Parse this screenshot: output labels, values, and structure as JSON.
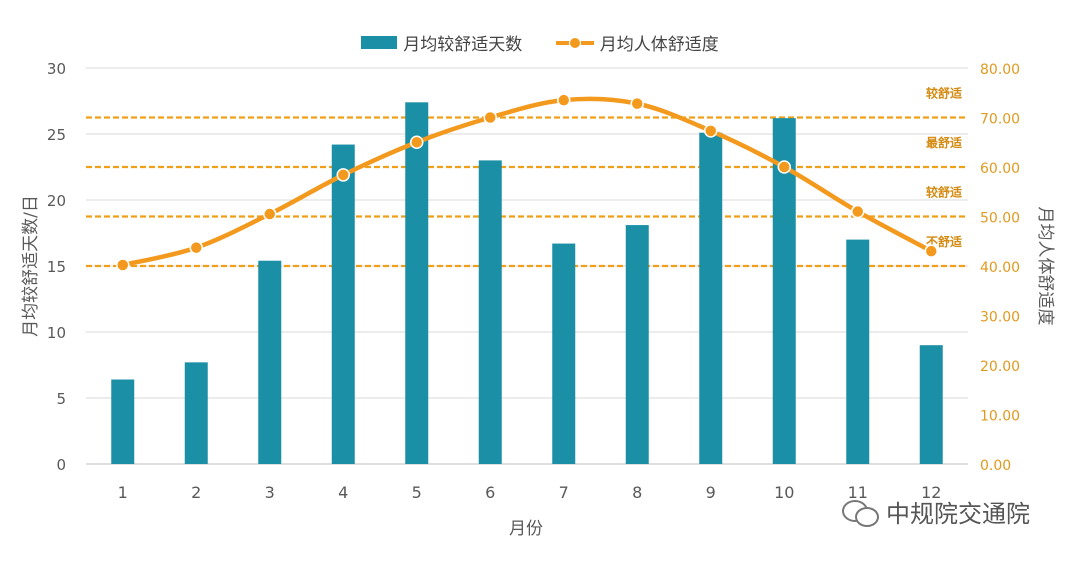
{
  "legend": {
    "bar_label": "月均较舒适天数",
    "line_label": "月均人体舒适度"
  },
  "watermark": {
    "text": "中规院交通院"
  },
  "colors": {
    "bar": "#1A8FA5",
    "line": "#F39A1E",
    "grid": "#D9D9D9",
    "ref": "#F0A018"
  },
  "chart_data": {
    "type": "bar",
    "categories": [
      "1",
      "2",
      "3",
      "4",
      "5",
      "6",
      "7",
      "8",
      "9",
      "10",
      "11",
      "12"
    ],
    "xlabel": "月份",
    "ylabel": "月均较舒适天数/日",
    "y2label": "月均人体舒适度",
    "ylim": [
      0,
      30
    ],
    "y2lim": [
      0,
      80
    ],
    "yticks": [
      "0",
      "5",
      "10",
      "15",
      "20",
      "25",
      "30"
    ],
    "y2ticks": [
      "0.00",
      "10.00",
      "20.00",
      "30.00",
      "40.00",
      "50.00",
      "60.00",
      "70.00",
      "80.00"
    ],
    "grid": true,
    "legend_position": "top-center",
    "series": [
      {
        "name": "月均较舒适天数",
        "type": "bar",
        "axis": "left",
        "values": [
          6.4,
          7.7,
          15.4,
          24.2,
          27.4,
          23.0,
          16.7,
          18.1,
          25.1,
          26.2,
          17.0,
          9.0
        ]
      },
      {
        "name": "月均人体舒适度",
        "type": "line",
        "axis": "right",
        "values": [
          40.2,
          43.7,
          50.5,
          58.4,
          65.0,
          70.0,
          73.5,
          72.8,
          67.3,
          60.0,
          51.0,
          43.0
        ]
      }
    ],
    "reference_lines": [
      {
        "y2": 70,
        "label": "较舒适"
      },
      {
        "y2": 60,
        "label": "最舒适"
      },
      {
        "y2": 50,
        "label": "较舒适"
      },
      {
        "y2": 40,
        "label": "不舒适"
      }
    ]
  }
}
